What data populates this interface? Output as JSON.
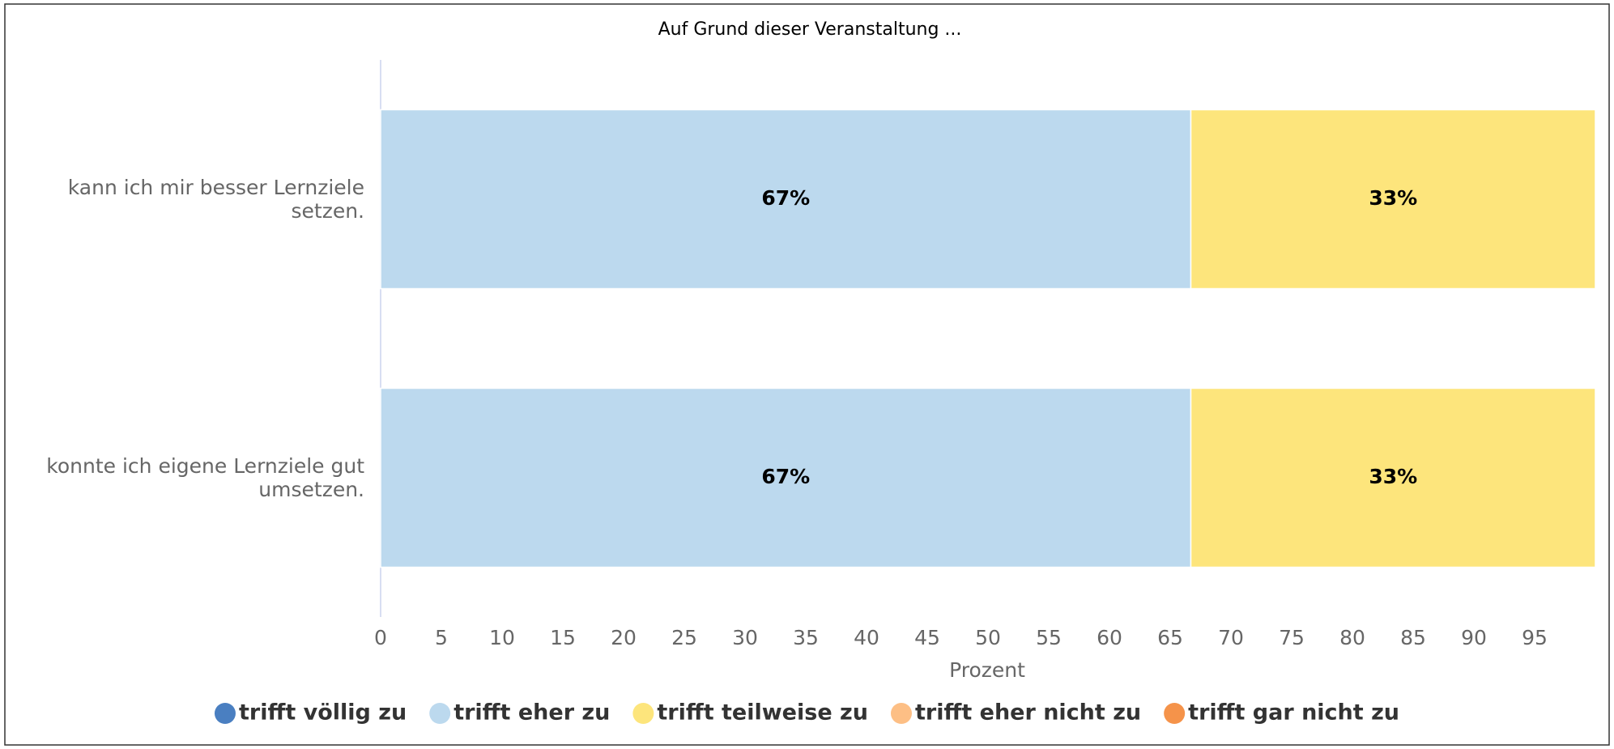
{
  "chart_data": {
    "type": "stacked-barh",
    "title": "Auf Grund dieser Veranstaltung ...",
    "xlabel": "Prozent",
    "categories": [
      "kann ich mir besser Lernziele setzen.",
      "konnte ich eigene Lernziele gut umsetzen."
    ],
    "series": [
      {
        "name": "trifft völlig zu",
        "color": "#4a7fc1",
        "values": [
          0,
          0
        ]
      },
      {
        "name": "trifft eher zu",
        "color": "#bcd9ee",
        "values": [
          66.7,
          66.7
        ],
        "value_labels": [
          "67%",
          "67%"
        ]
      },
      {
        "name": "trifft teilweise zu",
        "color": "#fde57c",
        "values": [
          33.3,
          33.3
        ],
        "value_labels": [
          "33%",
          "33%"
        ]
      },
      {
        "name": "trifft eher nicht zu",
        "color": "#fdbf85",
        "values": [
          0,
          0
        ]
      },
      {
        "name": "trifft gar nicht zu",
        "color": "#f5934a",
        "values": [
          0,
          0
        ]
      }
    ],
    "xlim": [
      0,
      100
    ],
    "xticks": [
      0,
      5,
      10,
      15,
      20,
      25,
      30,
      35,
      40,
      45,
      50,
      55,
      60,
      65,
      70,
      75,
      80,
      85,
      90,
      95
    ],
    "legend": "bottom"
  }
}
